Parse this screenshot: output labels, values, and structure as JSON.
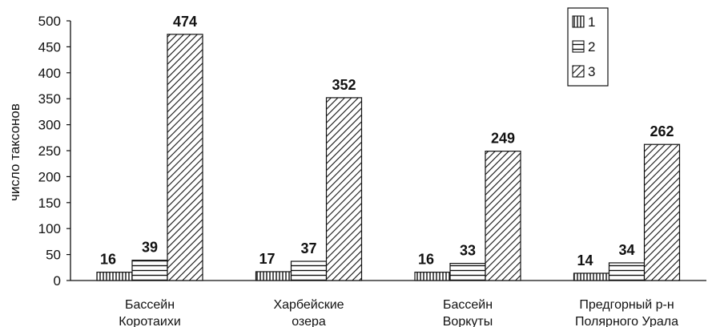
{
  "chart_data": {
    "type": "bar",
    "categories": [
      [
        "Бассейн",
        "Коротаихи"
      ],
      [
        "Харбейские",
        "озера"
      ],
      [
        "Бассейн",
        "Воркуты"
      ],
      [
        "Предгорный р-н",
        "Полярного Урала"
      ]
    ],
    "series": [
      {
        "name": "1",
        "values": [
          16,
          17,
          16,
          14
        ],
        "pattern": "vertical-lines"
      },
      {
        "name": "2",
        "values": [
          39,
          37,
          33,
          34
        ],
        "pattern": "horizontal-lines"
      },
      {
        "name": "3",
        "values": [
          474,
          352,
          249,
          262
        ],
        "pattern": "diagonal-hatch"
      }
    ],
    "ylabel": "число таксонов",
    "ylim": [
      0,
      500
    ],
    "yticks": [
      0,
      50,
      100,
      150,
      200,
      250,
      300,
      350,
      400,
      450,
      500
    ],
    "grid": false,
    "legend": "top-right",
    "colors": {
      "ink": "#111111",
      "background": "#ffffff"
    }
  }
}
